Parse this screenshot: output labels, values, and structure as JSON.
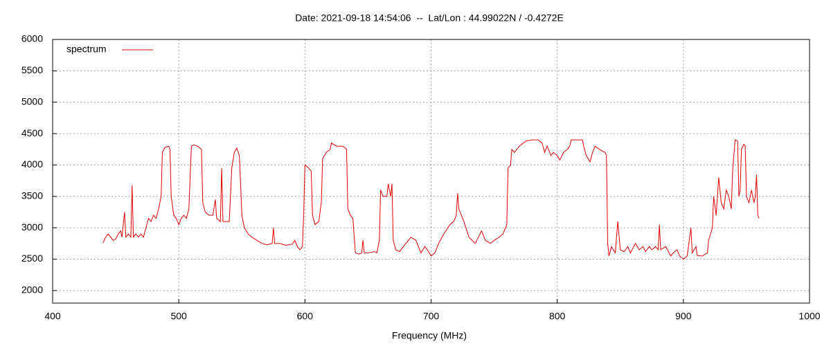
{
  "chart_data": {
    "type": "line",
    "title": "Date: 2021-09-18 14:54:06  --  Lat/Lon : 44.99022N / -0.4272E",
    "x_label": "Frequency (MHz)",
    "xlim": [
      400,
      1000
    ],
    "xticks": [
      400,
      500,
      600,
      700,
      800,
      900,
      1000
    ],
    "ylim": [
      1800,
      6000
    ],
    "yticks": [
      2000,
      2500,
      3000,
      3500,
      4000,
      4500,
      5000,
      5500,
      6000
    ],
    "grid": true,
    "legend": "top-left",
    "x": [
      440,
      442,
      444,
      446,
      448,
      450,
      452,
      454,
      455,
      457,
      458,
      460,
      462,
      463,
      464,
      466,
      468,
      470,
      472,
      474,
      476,
      478,
      480,
      482,
      484,
      486,
      487,
      489,
      492,
      493,
      494,
      496,
      498,
      500,
      502,
      504,
      506,
      508,
      510,
      512,
      515,
      518,
      519,
      521,
      524,
      527,
      529,
      530,
      533,
      534,
      535,
      538,
      540,
      542,
      544,
      546,
      548,
      549,
      550,
      552,
      555,
      558,
      562,
      566,
      570,
      574,
      575,
      576,
      580,
      585,
      590,
      592,
      594,
      596,
      598,
      599,
      600,
      603,
      605,
      606,
      608,
      611,
      613,
      614,
      617,
      620,
      621,
      625,
      630,
      633,
      634,
      636,
      638,
      640,
      643,
      645,
      646,
      647,
      650,
      655,
      657,
      659,
      660,
      662,
      665,
      666,
      668,
      669,
      670,
      672,
      675,
      678,
      680,
      684,
      688,
      690,
      692,
      695,
      697,
      700,
      703,
      706,
      710,
      715,
      718,
      720,
      721,
      722,
      726,
      730,
      735,
      740,
      743,
      747,
      750,
      754,
      757,
      760,
      761,
      763,
      764,
      766,
      770,
      775,
      780,
      785,
      788,
      790,
      792,
      795,
      797,
      800,
      802,
      805,
      808,
      810,
      811,
      815,
      820,
      821,
      823,
      826,
      828,
      830,
      835,
      838,
      839,
      840,
      841,
      843,
      846,
      848,
      850,
      853,
      856,
      858,
      862,
      865,
      868,
      870,
      873,
      875,
      878,
      880,
      881,
      882,
      886,
      890,
      892,
      895,
      897,
      900,
      903,
      906,
      907,
      910,
      911,
      915,
      919,
      920,
      923,
      924,
      926,
      928,
      930,
      932,
      934,
      936,
      938,
      939,
      941,
      943,
      944,
      945,
      946,
      948,
      949,
      950,
      952,
      954,
      956,
      957,
      958,
      959,
      960
    ],
    "series": [
      {
        "name": "spectrum",
        "color": "#e00000",
        "values": [
          2760,
          2850,
          2900,
          2850,
          2800,
          2820,
          2900,
          2950,
          2850,
          3250,
          2850,
          2900,
          2850,
          3680,
          2850,
          2900,
          2850,
          2900,
          2850,
          3000,
          3150,
          3100,
          3200,
          3150,
          3300,
          3500,
          4200,
          4280,
          4300,
          4250,
          3500,
          3200,
          3150,
          3050,
          3150,
          3200,
          3150,
          3300,
          4300,
          4320,
          4300,
          4250,
          3400,
          3250,
          3200,
          3200,
          3450,
          3150,
          3100,
          3950,
          3100,
          3100,
          3100,
          3950,
          4200,
          4270,
          4150,
          3700,
          3200,
          3000,
          2900,
          2850,
          2800,
          2750,
          2730,
          2750,
          3000,
          2750,
          2750,
          2720,
          2740,
          2800,
          2700,
          2650,
          2700,
          3200,
          4000,
          3950,
          3900,
          3200,
          3050,
          3100,
          3400,
          4100,
          4200,
          4250,
          4350,
          4300,
          4300,
          4250,
          3300,
          3200,
          3150,
          2600,
          2580,
          2600,
          2800,
          2600,
          2600,
          2620,
          2600,
          2800,
          3600,
          3500,
          3500,
          3700,
          3500,
          3700,
          2800,
          2650,
          2620,
          2700,
          2750,
          2850,
          2800,
          2700,
          2600,
          2700,
          2650,
          2550,
          2600,
          2750,
          2900,
          3050,
          3100,
          3200,
          3550,
          3300,
          3100,
          2850,
          2750,
          2950,
          2800,
          2750,
          2800,
          2850,
          2900,
          3050,
          3950,
          4000,
          4250,
          4200,
          4300,
          4380,
          4400,
          4400,
          4350,
          4200,
          4300,
          4150,
          4200,
          4150,
          4080,
          4200,
          4250,
          4300,
          4400,
          4400,
          4400,
          4300,
          4150,
          4050,
          4200,
          4300,
          4230,
          4200,
          4150,
          2750,
          2550,
          2700,
          2600,
          3100,
          2650,
          2620,
          2700,
          2600,
          2750,
          2650,
          2700,
          2620,
          2700,
          2650,
          2700,
          2650,
          3050,
          2650,
          2700,
          2550,
          2600,
          2650,
          2550,
          2500,
          2550,
          3000,
          2600,
          2700,
          2560,
          2550,
          2600,
          2800,
          3000,
          3500,
          3200,
          3800,
          3400,
          3300,
          3600,
          3500,
          3300,
          3900,
          4400,
          4380,
          3500,
          3600,
          4250,
          4330,
          4300,
          3500,
          3400,
          3600,
          3400,
          3500,
          3850,
          3200,
          3150
        ]
      }
    ]
  }
}
